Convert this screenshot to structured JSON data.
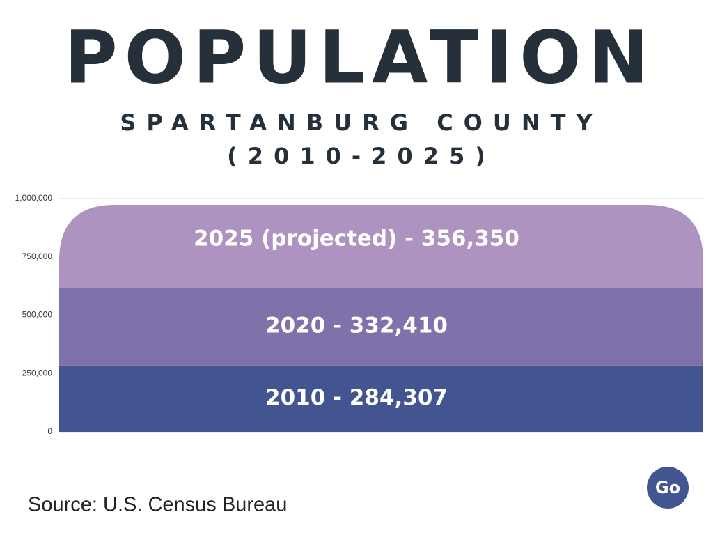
{
  "chart_data": {
    "type": "stacked-bar",
    "title": "POPULATION",
    "subtitle": [
      "SPARTANBURG COUNTY",
      "(2010-2025)"
    ],
    "series": [
      {
        "color": "#435591",
        "values": [
          284307
        ],
        "value_labels": [
          "2010 - 284,307"
        ]
      },
      {
        "color": "#7f71a9",
        "values": [
          332410
        ],
        "value_labels": [
          "2020 - 332,410"
        ]
      },
      {
        "color": "#ae93c1",
        "values": [
          356350
        ],
        "value_labels": [
          "2025 (projected) - 356,350"
        ]
      }
    ],
    "ylim": [
      0,
      1000000
    ],
    "yticks": [
      0,
      {
        "value": 250000,
        "label": "250,000"
      },
      {
        "value": 500000,
        "label": "500,000"
      },
      {
        "value": 750000,
        "label": "750,000"
      },
      {
        "value": 1000000,
        "label": "1,000,000"
      }
    ],
    "grid": true,
    "source": "Source: U.S. Census Bureau",
    "logo": "Go"
  }
}
